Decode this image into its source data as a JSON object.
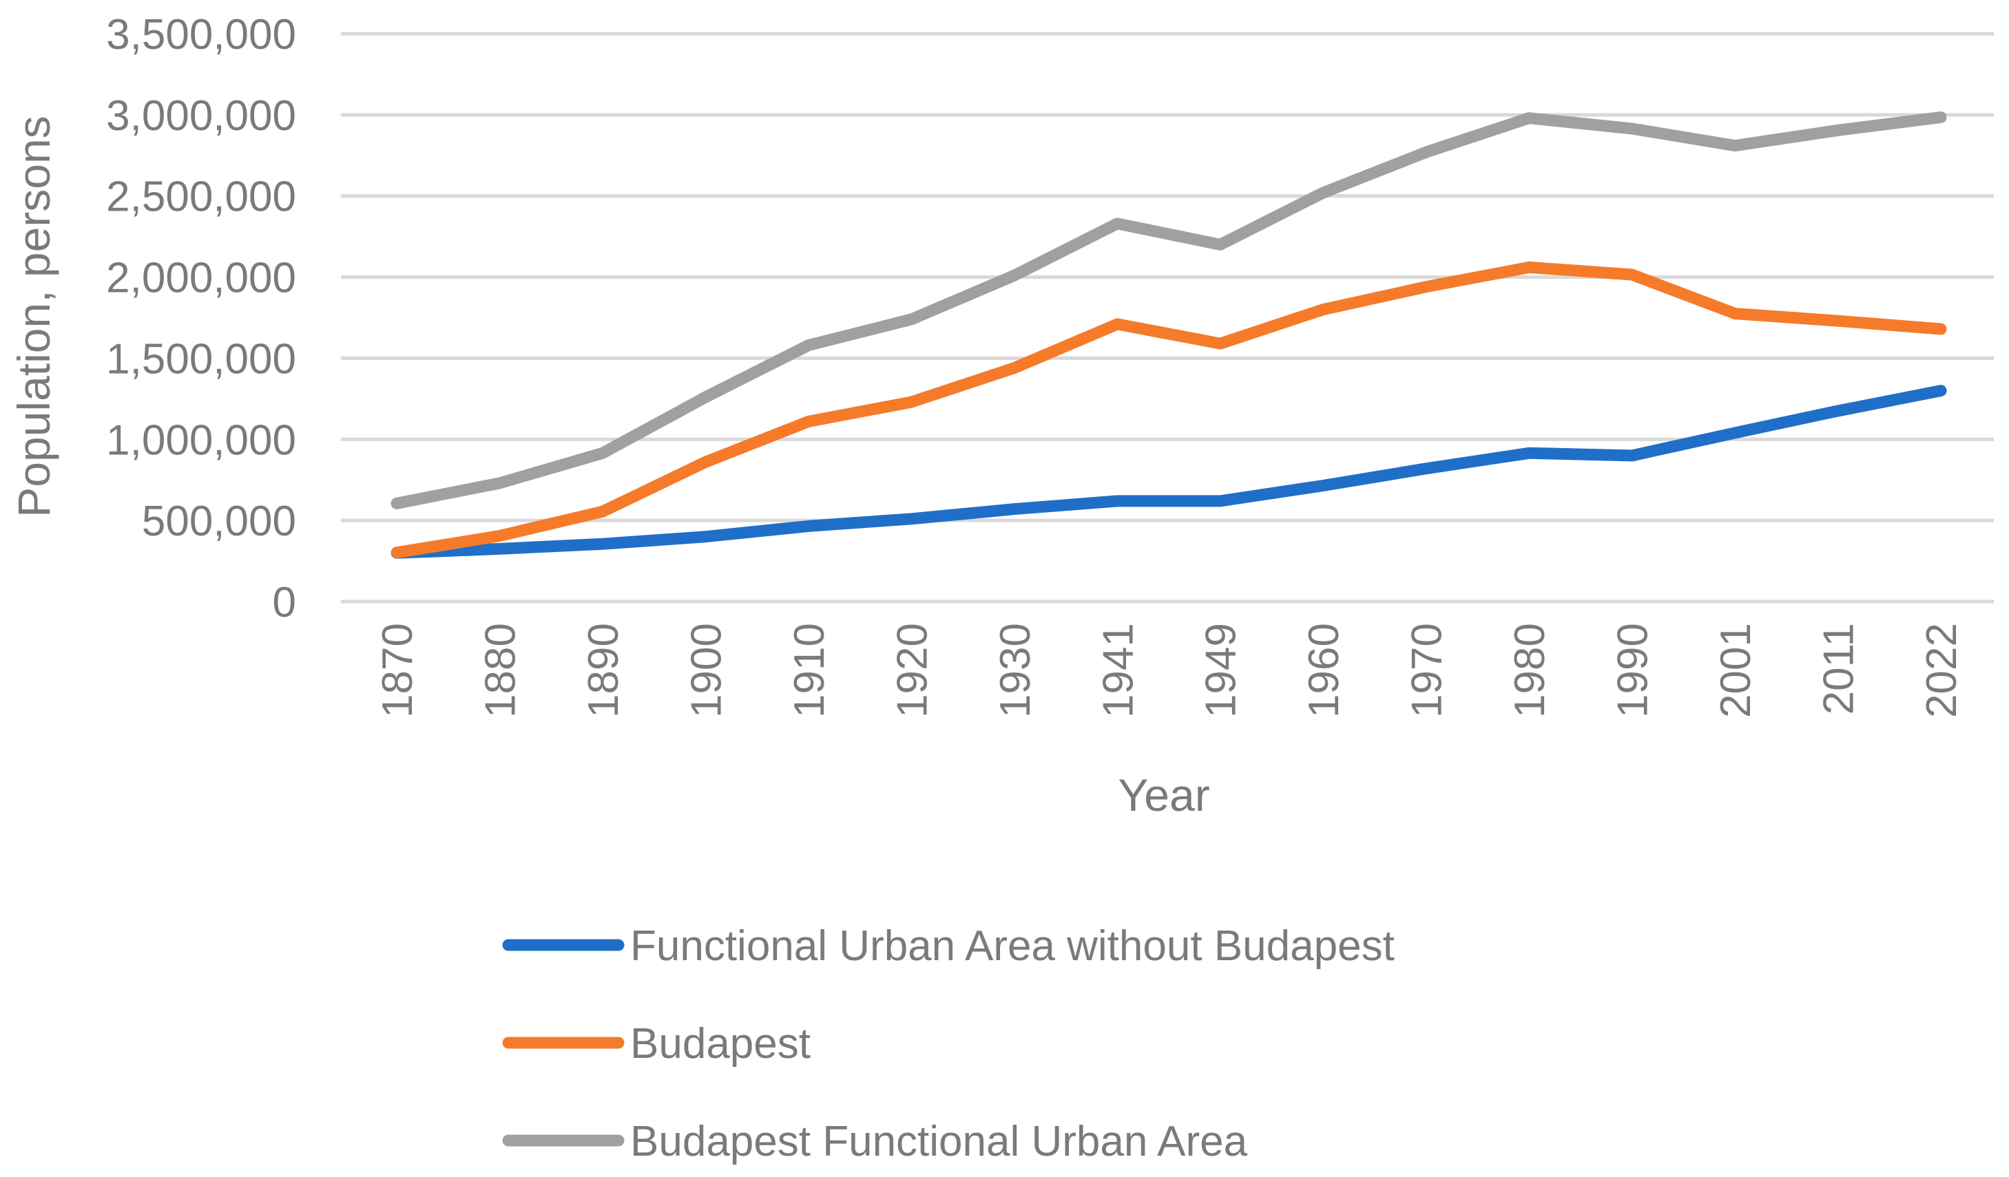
{
  "chart_data": {
    "type": "line",
    "title": "",
    "xlabel": "Year",
    "ylabel": "Population, persons",
    "categories": [
      "1870",
      "1880",
      "1890",
      "1900",
      "1910",
      "1920",
      "1930",
      "1941",
      "1949",
      "1960",
      "1970",
      "1980",
      "1990",
      "2001",
      "2011",
      "2022"
    ],
    "ylim": [
      0,
      3500000
    ],
    "yticks": [
      0,
      500000,
      1000000,
      1500000,
      2000000,
      2500000,
      3000000,
      3500000
    ],
    "ytick_labels": [
      "0",
      "500,000",
      "1,000,000",
      "1,500,000",
      "2,000,000",
      "2,500,000",
      "3,000,000",
      "3,500,000"
    ],
    "grid": true,
    "legend_position": "bottom",
    "series": [
      {
        "name": "Functional Urban Area without Budapest",
        "color": "#1f6fc9",
        "values": [
          300000,
          325000,
          355000,
          400000,
          465000,
          510000,
          570000,
          620000,
          620000,
          715000,
          820000,
          915000,
          900000,
          1040000,
          1175000,
          1300000
        ]
      },
      {
        "name": "Budapest",
        "color": "#f57b2a",
        "values": [
          302000,
          405000,
          555000,
          860000,
          1110000,
          1230000,
          1440000,
          1710000,
          1590000,
          1800000,
          1940000,
          2060000,
          2015000,
          1775000,
          1730000,
          1680000
        ]
      },
      {
        "name": "Budapest Functional Urban Area",
        "color": "#a0a0a0",
        "values": [
          605000,
          730000,
          915000,
          1260000,
          1580000,
          1740000,
          2010000,
          2330000,
          2200000,
          2520000,
          2770000,
          2980000,
          2915000,
          2810000,
          2905000,
          2985000
        ]
      }
    ]
  }
}
